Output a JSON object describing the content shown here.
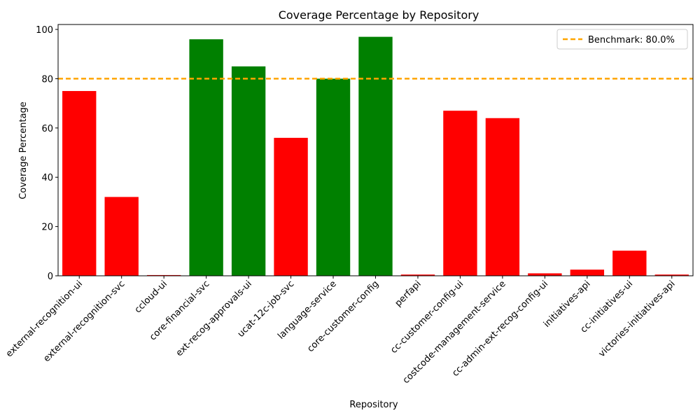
{
  "chart_data": {
    "type": "bar",
    "title": "Coverage Percentage by Repository",
    "xlabel": "Repository",
    "ylabel": "Coverage Percentage",
    "ylim": [
      0,
      102
    ],
    "yticks": [
      0,
      20,
      40,
      60,
      80,
      100
    ],
    "grid": false,
    "legend_position": "top-right",
    "categories": [
      "external-recognition-ui",
      "external-recognition-svc",
      "ccloud-ui",
      "core-financial-svc",
      "ext-recog-approvals-ui",
      "ucat-12c-job-svc",
      "language-service",
      "core-customer-config",
      "perfapi",
      "cc-customer-config-ui",
      "costcode-management-service",
      "cc-admin-ext-recog-config-ui",
      "initiatives-api",
      "cc-initiatives-ui",
      "victories-initiatives-api"
    ],
    "values": [
      75,
      32,
      0.3,
      96,
      85,
      56,
      80,
      97,
      0.5,
      67,
      64,
      1,
      2.5,
      10.2,
      0.5
    ],
    "benchmark": {
      "value": 80.0,
      "label": "Benchmark: 80.0%",
      "color": "#ffa500"
    },
    "colors": {
      "above": "#008000",
      "below": "#ff0000"
    }
  }
}
